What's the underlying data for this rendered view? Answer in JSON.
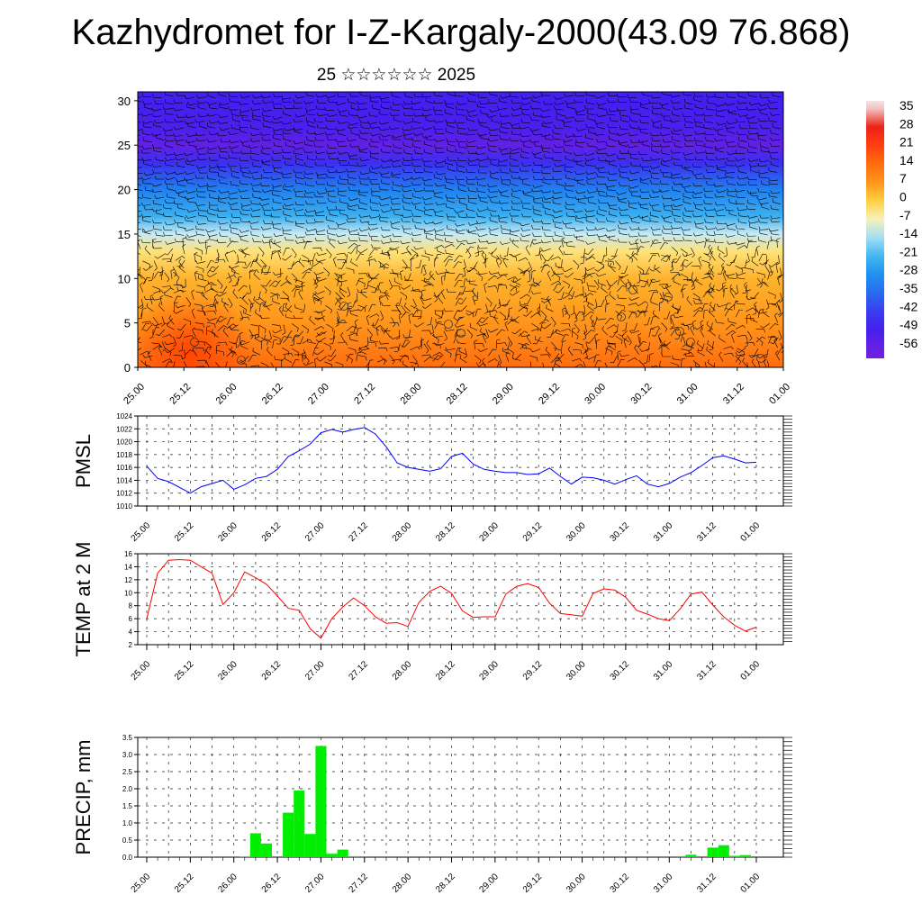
{
  "header": {
    "title": "Kazhydromet for I-Z-Kargaly-2000(43.09 76.868)",
    "subtitle": "25 ☆☆☆☆☆☆ 2025"
  },
  "time_ticks": [
    "25.00",
    "25.12",
    "26.00",
    "26.12",
    "27.00",
    "27.12",
    "28.00",
    "28.12",
    "29.00",
    "29.12",
    "30.00",
    "30.12",
    "31.00",
    "31.12",
    "01.00"
  ],
  "chart_data": [
    {
      "type": "heatmap",
      "name": "cross-section",
      "xlabel": "",
      "ylabel": "",
      "yticks": [
        0,
        5,
        10,
        15,
        20,
        25,
        30
      ],
      "ylim": [
        0,
        31
      ],
      "colorbar_labels": [
        "35",
        "28",
        "21",
        "14",
        "7",
        "0",
        "-7",
        "-14",
        "-21",
        "-28",
        "-35",
        "-42",
        "-49",
        "-56"
      ],
      "description_levels": [
        {
          "height": 0,
          "temp": 14
        },
        {
          "height": 5,
          "temp": 7
        },
        {
          "height": 10,
          "temp": 3
        },
        {
          "height": 13,
          "temp": -3
        },
        {
          "height": 15,
          "temp": -12
        },
        {
          "height": 17,
          "temp": -22
        },
        {
          "height": 20,
          "temp": -32
        },
        {
          "height": 23,
          "temp": -45
        },
        {
          "height": 25,
          "temp": -55
        },
        {
          "height": 27,
          "temp": -50
        },
        {
          "height": 31,
          "temp": -48
        }
      ]
    },
    {
      "type": "line",
      "name": "PMSL",
      "ylabel": "PMSL",
      "ylim": [
        1010,
        1024
      ],
      "yticks": [
        1010,
        1012,
        1014,
        1016,
        1018,
        1020,
        1022,
        1024
      ],
      "color": "#0000ff",
      "values": [
        1016.2,
        1014.3,
        1013.8,
        1012.9,
        1012.0,
        1013.0,
        1013.5,
        1014.0,
        1012.6,
        1013.3,
        1014.3,
        1014.6,
        1015.7,
        1017.7,
        1018.6,
        1019.6,
        1021.4,
        1021.9,
        1021.5,
        1021.9,
        1022.2,
        1021.2,
        1019.2,
        1016.7,
        1016.0,
        1015.7,
        1015.4,
        1015.8,
        1017.7,
        1018.2,
        1016.5,
        1015.7,
        1015.4,
        1015.2,
        1015.2,
        1014.9,
        1015.0,
        1015.9,
        1014.6,
        1013.4,
        1014.5,
        1014.4,
        1014.0,
        1013.4,
        1014.1,
        1014.7,
        1013.4,
        1013.0,
        1013.5,
        1014.5,
        1015.2,
        1016.3,
        1017.5,
        1017.8,
        1017.3,
        1016.7,
        1016.8
      ]
    },
    {
      "type": "line",
      "name": "TEMP at 2 M",
      "ylabel": "TEMP at 2 M",
      "ylim": [
        2,
        16
      ],
      "yticks": [
        2,
        4,
        6,
        8,
        10,
        12,
        14,
        16
      ],
      "color": "#ff0000",
      "values": [
        6.0,
        13.0,
        15.0,
        15.1,
        15.0,
        14.0,
        13.0,
        8.2,
        10.0,
        13.2,
        12.3,
        11.3,
        9.5,
        7.6,
        7.3,
        4.5,
        3.0,
        6.0,
        7.8,
        9.2,
        8.0,
        6.3,
        5.3,
        5.4,
        4.8,
        8.5,
        10.2,
        11.0,
        9.9,
        7.2,
        6.2,
        6.3,
        6.3,
        9.8,
        11.0,
        11.4,
        10.8,
        8.4,
        6.8,
        6.6,
        6.4,
        9.9,
        10.6,
        10.4,
        9.3,
        7.3,
        6.7,
        6.0,
        5.7,
        7.5,
        9.8,
        10.1,
        8.1,
        6.3,
        5.0,
        4.1,
        4.7
      ]
    },
    {
      "type": "bar",
      "name": "PRECIP, mm",
      "ylabel": "PRECIP, mm",
      "ylim": [
        0,
        3.5
      ],
      "yticks": [
        "0.0",
        "0.5",
        "1.0",
        "1.5",
        "2.0",
        "2.5",
        "3.0",
        "3.5"
      ],
      "yticks_values": [
        0,
        0.5,
        1,
        1.5,
        2,
        2.5,
        3,
        3.5
      ],
      "color": "#00ee00",
      "values": [
        0,
        0,
        0,
        0,
        0,
        0,
        0,
        0,
        0,
        0.02,
        0.7,
        0.4,
        0,
        1.3,
        1.95,
        0.68,
        3.25,
        0.1,
        0.22,
        0.03,
        0,
        0,
        0,
        0,
        0,
        0,
        0,
        0,
        0,
        0,
        0,
        0,
        0,
        0,
        0,
        0,
        0,
        0,
        0,
        0,
        0,
        0,
        0,
        0,
        0,
        0,
        0,
        0,
        0,
        0.03,
        0.07,
        0,
        0.28,
        0.35,
        0.04,
        0.06,
        0
      ]
    }
  ]
}
